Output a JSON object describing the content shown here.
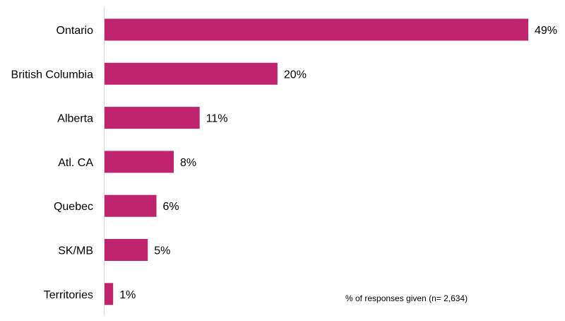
{
  "chart_data": {
    "type": "bar",
    "orientation": "horizontal",
    "categories": [
      "Ontario",
      "British Columbia",
      "Alberta",
      "Atl. CA",
      "Quebec",
      "SK/MB",
      "Territories"
    ],
    "values": [
      49,
      20,
      11,
      8,
      6,
      5,
      1
    ],
    "value_labels": [
      "49%",
      "20%",
      "11%",
      "8%",
      "6%",
      "5%",
      "1%"
    ],
    "unit": "%",
    "xlim": [
      0,
      49
    ],
    "grid": false,
    "bar_color": "#C0246F",
    "axis_color": "#D9D9D9",
    "note": "% of responses given (n= 2,634)"
  }
}
